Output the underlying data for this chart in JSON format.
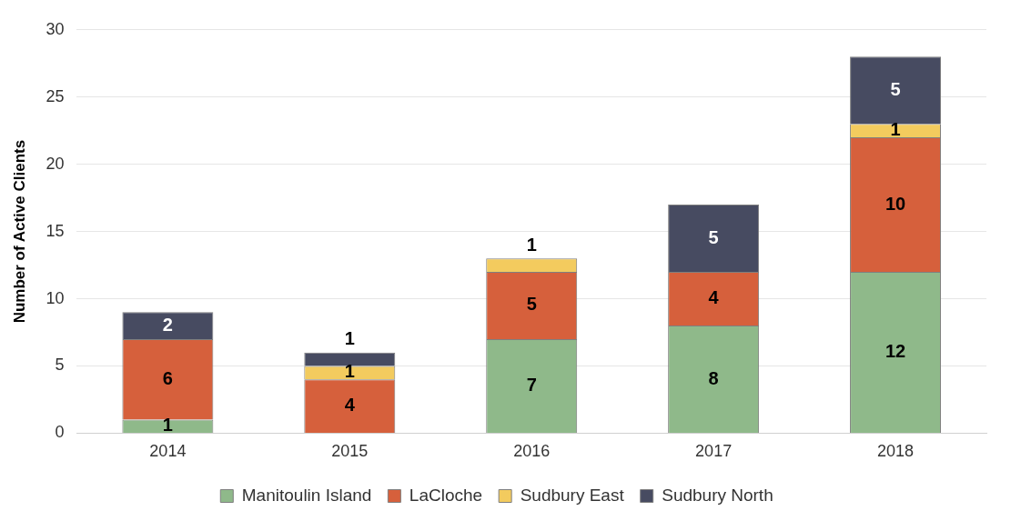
{
  "chart_data": {
    "type": "bar",
    "stacked": true,
    "ylabel": "Number of Active Clients",
    "categories": [
      "2014",
      "2015",
      "2016",
      "2017",
      "2018"
    ],
    "series": [
      {
        "name": "Manitoulin Island",
        "color": "#8fb98a",
        "values": [
          1,
          0,
          7,
          8,
          12
        ],
        "value_labels": [
          "1",
          null,
          "7",
          "8",
          "12"
        ]
      },
      {
        "name": "LaCloche",
        "color": "#d6603c",
        "values": [
          6,
          4,
          5,
          4,
          10
        ],
        "value_labels": [
          "6",
          "4",
          "5",
          "4",
          "10"
        ]
      },
      {
        "name": "Sudbury East",
        "color": "#f3cb5e",
        "values": [
          0,
          1,
          1,
          0,
          1
        ],
        "value_labels": [
          null,
          "1",
          "1",
          null,
          "1"
        ]
      },
      {
        "name": "Sudbury North",
        "color": "#474b61",
        "values": [
          2,
          1,
          0,
          5,
          5
        ],
        "value_labels": [
          "2",
          "1",
          null,
          "5",
          "5"
        ]
      }
    ],
    "ylim": [
      0,
      30
    ],
    "yticks": [
      0,
      5,
      10,
      15,
      20,
      25,
      30
    ],
    "grid": "y",
    "legend": "bottom"
  }
}
